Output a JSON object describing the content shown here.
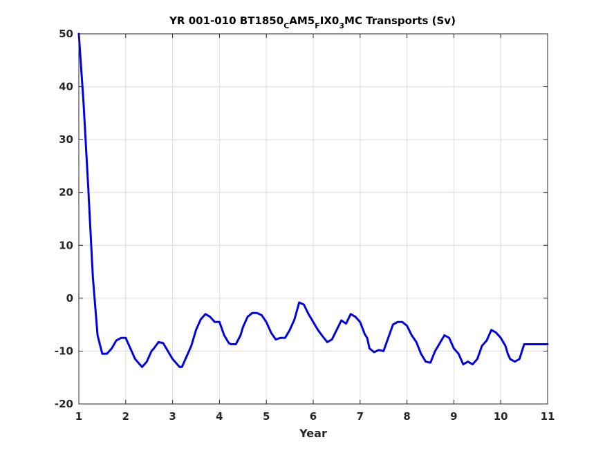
{
  "chart_data": {
    "type": "line",
    "title": {
      "main": "YR 001-010 BT1850",
      "sub1": "C",
      "part2": "AM5",
      "sub2": "F",
      "part3": "IX0",
      "sub3": "3",
      "part4": "MC Transports (Sv)"
    },
    "xlabel": "Year",
    "ylabel": "",
    "xlim": [
      1,
      11
    ],
    "ylim": [
      -20,
      50
    ],
    "xticks": [
      1,
      2,
      3,
      4,
      5,
      6,
      7,
      8,
      9,
      10,
      11
    ],
    "yticks": [
      -20,
      -10,
      0,
      10,
      20,
      30,
      40,
      50
    ],
    "grid": true,
    "line_color": "#0000e6",
    "series": [
      {
        "x": [
          1.0,
          1.1,
          1.2,
          1.3,
          1.4,
          1.5,
          1.6,
          1.7,
          1.8,
          1.9,
          2.0,
          2.1,
          2.2,
          2.3,
          2.35,
          2.45,
          2.55,
          2.6,
          2.7,
          2.8,
          2.9,
          3.0,
          3.1,
          3.15,
          3.2,
          3.3,
          3.4,
          3.5,
          3.6,
          3.7,
          3.8,
          3.9,
          4.0,
          4.1,
          4.2,
          4.25,
          4.35,
          4.45,
          4.5,
          4.6,
          4.7,
          4.8,
          4.9,
          5.0,
          5.1,
          5.2,
          5.3,
          5.4,
          5.5,
          5.6,
          5.7,
          5.8,
          5.9,
          6.0,
          6.1,
          6.2,
          6.3,
          6.4,
          6.5,
          6.6,
          6.7,
          6.8,
          6.9,
          7.0,
          7.1,
          7.15,
          7.2,
          7.3,
          7.4,
          7.5,
          7.6,
          7.7,
          7.8,
          7.9,
          8.0,
          8.1,
          8.2,
          8.3,
          8.4,
          8.5,
          8.6,
          8.7,
          8.8,
          8.9,
          9.0,
          9.1,
          9.2,
          9.3,
          9.4,
          9.5,
          9.6,
          9.7,
          9.8,
          9.9,
          10.0,
          10.1,
          10.15,
          10.2,
          10.3,
          10.4,
          10.5,
          10.6,
          10.7,
          10.8,
          10.9,
          11.0
        ],
        "values": [
          50,
          37,
          21,
          4,
          -7,
          -10.5,
          -10.5,
          -9.5,
          -8,
          -7.5,
          -7.5,
          -9.5,
          -11.5,
          -12.5,
          -13,
          -12,
          -10,
          -9.5,
          -8.3,
          -8.5,
          -10,
          -11.5,
          -12.5,
          -13,
          -13,
          -11,
          -9,
          -6,
          -4,
          -3,
          -3.5,
          -4.5,
          -4.5,
          -7,
          -8.5,
          -8.7,
          -8.7,
          -7,
          -5.5,
          -3.5,
          -2.8,
          -2.8,
          -3.2,
          -4.5,
          -6.5,
          -7.8,
          -7.5,
          -7.5,
          -6,
          -4,
          -0.8,
          -1.2,
          -3,
          -4.5,
          -6,
          -7.2,
          -8.3,
          -7.8,
          -6,
          -4.2,
          -4.8,
          -3,
          -3.5,
          -4.5,
          -6.8,
          -7.5,
          -9.5,
          -10.2,
          -9.8,
          -10,
          -7.5,
          -5,
          -4.5,
          -4.5,
          -5.2,
          -7,
          -8.3,
          -10.5,
          -12,
          -12.2,
          -10,
          -8.5,
          -7,
          -7.5,
          -9.5,
          -10.5,
          -12.5,
          -12,
          -12.5,
          -11.5,
          -9,
          -8,
          -6,
          -6.5,
          -7.5,
          -9,
          -10.5,
          -11.5,
          -12,
          -11.5,
          -8.7,
          -8.7,
          -8.7,
          -8.7,
          -8.7,
          -8.7
        ]
      }
    ]
  }
}
